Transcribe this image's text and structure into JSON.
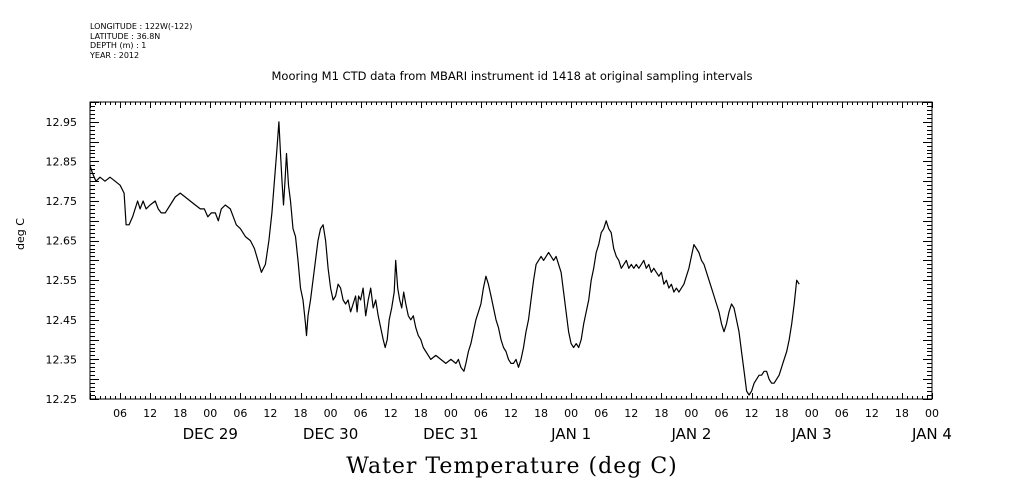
{
  "meta": {
    "longitude": "LONGITUDE : 122W(-122)",
    "latitude": "LATITUDE : 36.8N",
    "depth": "DEPTH (m) : 1",
    "year": "YEAR : 2012"
  },
  "chart_data": {
    "type": "line",
    "title": "Mooring M1 CTD data from MBARI instrument id 1418 at original sampling intervals",
    "xlabel": "Water Temperature (deg C)",
    "ylabel": "deg C",
    "x_unit": "hours from DEC 28 00:00",
    "xlim": [
      0,
      168
    ],
    "ylim": [
      12.25,
      13.0
    ],
    "y_ticks": [
      "12.25",
      "12.35",
      "12.45",
      "12.55",
      "12.65",
      "12.75",
      "12.85",
      "12.95"
    ],
    "x_hour_labels": [
      "06",
      "12",
      "18",
      "00",
      "06",
      "12",
      "18",
      "00",
      "06",
      "12",
      "18",
      "00",
      "06",
      "12",
      "18",
      "00",
      "06",
      "12",
      "18",
      "00",
      "06",
      "12",
      "18",
      "00",
      "06",
      "12",
      "18",
      "00"
    ],
    "day_labels": [
      "DEC 29",
      "DEC 30",
      "DEC 31",
      "JAN  1",
      "JAN  2",
      "JAN  3",
      "JAN  4"
    ],
    "grid": false,
    "series": [
      {
        "color": "#000000",
        "points": [
          [
            0,
            12.84
          ],
          [
            0.5,
            12.82
          ],
          [
            1.2,
            12.8
          ],
          [
            2,
            12.81
          ],
          [
            3,
            12.8
          ],
          [
            4,
            12.81
          ],
          [
            5,
            12.8
          ],
          [
            6,
            12.79
          ],
          [
            6.8,
            12.77
          ],
          [
            7.2,
            12.69
          ],
          [
            7.8,
            12.69
          ],
          [
            8.5,
            12.71
          ],
          [
            9,
            12.73
          ],
          [
            9.5,
            12.75
          ],
          [
            10,
            12.73
          ],
          [
            10.6,
            12.75
          ],
          [
            11.2,
            12.73
          ],
          [
            12,
            12.74
          ],
          [
            13,
            12.75
          ],
          [
            13.6,
            12.73
          ],
          [
            14.2,
            12.72
          ],
          [
            15,
            12.72
          ],
          [
            16,
            12.74
          ],
          [
            17,
            12.76
          ],
          [
            18,
            12.77
          ],
          [
            19,
            12.76
          ],
          [
            20,
            12.75
          ],
          [
            21,
            12.74
          ],
          [
            22,
            12.73
          ],
          [
            22.8,
            12.73
          ],
          [
            23.5,
            12.71
          ],
          [
            24.2,
            12.72
          ],
          [
            25,
            12.72
          ],
          [
            25.6,
            12.7
          ],
          [
            26.2,
            12.73
          ],
          [
            27,
            12.74
          ],
          [
            28,
            12.73
          ],
          [
            28.6,
            12.71
          ],
          [
            29.2,
            12.69
          ],
          [
            30,
            12.68
          ],
          [
            31,
            12.66
          ],
          [
            32,
            12.65
          ],
          [
            32.8,
            12.63
          ],
          [
            33.5,
            12.6
          ],
          [
            34.2,
            12.57
          ],
          [
            35,
            12.59
          ],
          [
            35.7,
            12.65
          ],
          [
            36.3,
            12.72
          ],
          [
            36.8,
            12.8
          ],
          [
            37.3,
            12.88
          ],
          [
            37.7,
            12.95
          ],
          [
            38,
            12.87
          ],
          [
            38.3,
            12.8
          ],
          [
            38.6,
            12.74
          ],
          [
            38.9,
            12.8
          ],
          [
            39.2,
            12.87
          ],
          [
            39.6,
            12.79
          ],
          [
            40,
            12.75
          ],
          [
            40.5,
            12.68
          ],
          [
            41,
            12.66
          ],
          [
            41.5,
            12.6
          ],
          [
            42,
            12.53
          ],
          [
            42.5,
            12.5
          ],
          [
            43,
            12.44
          ],
          [
            43.2,
            12.41
          ],
          [
            43.5,
            12.46
          ],
          [
            44,
            12.5
          ],
          [
            44.5,
            12.55
          ],
          [
            45,
            12.6
          ],
          [
            45.5,
            12.65
          ],
          [
            46,
            12.68
          ],
          [
            46.5,
            12.69
          ],
          [
            47,
            12.65
          ],
          [
            47.5,
            12.58
          ],
          [
            48,
            12.53
          ],
          [
            48.5,
            12.5
          ],
          [
            49,
            12.51
          ],
          [
            49.5,
            12.54
          ],
          [
            50,
            12.53
          ],
          [
            50.5,
            12.5
          ],
          [
            51,
            12.49
          ],
          [
            51.5,
            12.5
          ],
          [
            52,
            12.47
          ],
          [
            52.5,
            12.49
          ],
          [
            53,
            12.51
          ],
          [
            53.3,
            12.47
          ],
          [
            53.6,
            12.51
          ],
          [
            54,
            12.5
          ],
          [
            54.5,
            12.53
          ],
          [
            55,
            12.46
          ],
          [
            55.5,
            12.5
          ],
          [
            56,
            12.53
          ],
          [
            56.5,
            12.48
          ],
          [
            57,
            12.5
          ],
          [
            57.5,
            12.46
          ],
          [
            58,
            12.43
          ],
          [
            58.5,
            12.4
          ],
          [
            58.9,
            12.38
          ],
          [
            59.3,
            12.4
          ],
          [
            59.7,
            12.45
          ],
          [
            60.2,
            12.48
          ],
          [
            60.7,
            12.52
          ],
          [
            61,
            12.6
          ],
          [
            61.4,
            12.53
          ],
          [
            61.8,
            12.5
          ],
          [
            62.2,
            12.48
          ],
          [
            62.6,
            12.52
          ],
          [
            63,
            12.49
          ],
          [
            63.5,
            12.46
          ],
          [
            64,
            12.45
          ],
          [
            64.5,
            12.46
          ],
          [
            65,
            12.43
          ],
          [
            65.5,
            12.41
          ],
          [
            66,
            12.4
          ],
          [
            66.5,
            12.38
          ],
          [
            67,
            12.37
          ],
          [
            67.5,
            12.36
          ],
          [
            68,
            12.35
          ],
          [
            69,
            12.36
          ],
          [
            70,
            12.35
          ],
          [
            71,
            12.34
          ],
          [
            72,
            12.35
          ],
          [
            73,
            12.34
          ],
          [
            73.5,
            12.35
          ],
          [
            74,
            12.33
          ],
          [
            74.6,
            12.32
          ],
          [
            75,
            12.34
          ],
          [
            75.5,
            12.37
          ],
          [
            76,
            12.39
          ],
          [
            76.5,
            12.42
          ],
          [
            77,
            12.45
          ],
          [
            77.5,
            12.47
          ],
          [
            78,
            12.49
          ],
          [
            78.5,
            12.53
          ],
          [
            79,
            12.56
          ],
          [
            79.5,
            12.54
          ],
          [
            80,
            12.51
          ],
          [
            80.5,
            12.48
          ],
          [
            81,
            12.45
          ],
          [
            81.5,
            12.43
          ],
          [
            82,
            12.4
          ],
          [
            82.5,
            12.38
          ],
          [
            83,
            12.37
          ],
          [
            83.5,
            12.35
          ],
          [
            84,
            12.34
          ],
          [
            84.5,
            12.34
          ],
          [
            85,
            12.35
          ],
          [
            85.5,
            12.33
          ],
          [
            86,
            12.35
          ],
          [
            86.5,
            12.38
          ],
          [
            87,
            12.42
          ],
          [
            87.5,
            12.45
          ],
          [
            88,
            12.5
          ],
          [
            88.5,
            12.55
          ],
          [
            89,
            12.59
          ],
          [
            89.5,
            12.6
          ],
          [
            90,
            12.61
          ],
          [
            90.5,
            12.6
          ],
          [
            91,
            12.61
          ],
          [
            91.5,
            12.62
          ],
          [
            92,
            12.61
          ],
          [
            92.5,
            12.6
          ],
          [
            93,
            12.61
          ],
          [
            93.5,
            12.59
          ],
          [
            94,
            12.57
          ],
          [
            94.5,
            12.52
          ],
          [
            95,
            12.47
          ],
          [
            95.5,
            12.42
          ],
          [
            96,
            12.39
          ],
          [
            96.5,
            12.38
          ],
          [
            97,
            12.39
          ],
          [
            97.5,
            12.38
          ],
          [
            98,
            12.4
          ],
          [
            98.5,
            12.44
          ],
          [
            99,
            12.47
          ],
          [
            99.5,
            12.5
          ],
          [
            100,
            12.55
          ],
          [
            100.5,
            12.58
          ],
          [
            101,
            12.62
          ],
          [
            101.5,
            12.64
          ],
          [
            102,
            12.67
          ],
          [
            102.5,
            12.68
          ],
          [
            103,
            12.7
          ],
          [
            103.5,
            12.68
          ],
          [
            104,
            12.67
          ],
          [
            104.5,
            12.63
          ],
          [
            105,
            12.61
          ],
          [
            105.5,
            12.6
          ],
          [
            106,
            12.58
          ],
          [
            106.5,
            12.59
          ],
          [
            107,
            12.6
          ],
          [
            107.5,
            12.58
          ],
          [
            108,
            12.59
          ],
          [
            108.5,
            12.58
          ],
          [
            109,
            12.59
          ],
          [
            109.5,
            12.58
          ],
          [
            110,
            12.59
          ],
          [
            110.5,
            12.6
          ],
          [
            111,
            12.58
          ],
          [
            111.5,
            12.59
          ],
          [
            112,
            12.57
          ],
          [
            112.5,
            12.58
          ],
          [
            113,
            12.57
          ],
          [
            113.5,
            12.56
          ],
          [
            114,
            12.57
          ],
          [
            114.5,
            12.54
          ],
          [
            115,
            12.55
          ],
          [
            115.5,
            12.53
          ],
          [
            116,
            12.54
          ],
          [
            116.5,
            12.52
          ],
          [
            117,
            12.53
          ],
          [
            117.5,
            12.52
          ],
          [
            118,
            12.53
          ],
          [
            118.5,
            12.54
          ],
          [
            119,
            12.56
          ],
          [
            119.5,
            12.58
          ],
          [
            120,
            12.61
          ],
          [
            120.5,
            12.64
          ],
          [
            121,
            12.63
          ],
          [
            121.5,
            12.62
          ],
          [
            122,
            12.6
          ],
          [
            122.5,
            12.59
          ],
          [
            123,
            12.57
          ],
          [
            123.5,
            12.55
          ],
          [
            124,
            12.53
          ],
          [
            124.5,
            12.51
          ],
          [
            125,
            12.49
          ],
          [
            125.5,
            12.47
          ],
          [
            126,
            12.44
          ],
          [
            126.5,
            12.42
          ],
          [
            127,
            12.44
          ],
          [
            127.5,
            12.47
          ],
          [
            128,
            12.49
          ],
          [
            128.5,
            12.48
          ],
          [
            129,
            12.45
          ],
          [
            129.5,
            12.42
          ],
          [
            130,
            12.37
          ],
          [
            130.5,
            12.32
          ],
          [
            131,
            12.27
          ],
          [
            131.5,
            12.26
          ],
          [
            132,
            12.27
          ],
          [
            132.5,
            12.29
          ],
          [
            133,
            12.3
          ],
          [
            133.5,
            12.31
          ],
          [
            134,
            12.31
          ],
          [
            134.5,
            12.32
          ],
          [
            135,
            12.32
          ],
          [
            135.5,
            12.3
          ],
          [
            136,
            12.29
          ],
          [
            136.5,
            12.29
          ],
          [
            137,
            12.3
          ],
          [
            137.5,
            12.31
          ],
          [
            138,
            12.33
          ],
          [
            138.5,
            12.35
          ],
          [
            139,
            12.37
          ],
          [
            139.5,
            12.4
          ],
          [
            140,
            12.44
          ],
          [
            140.5,
            12.49
          ],
          [
            141,
            12.55
          ],
          [
            141.5,
            12.54
          ]
        ]
      }
    ]
  }
}
